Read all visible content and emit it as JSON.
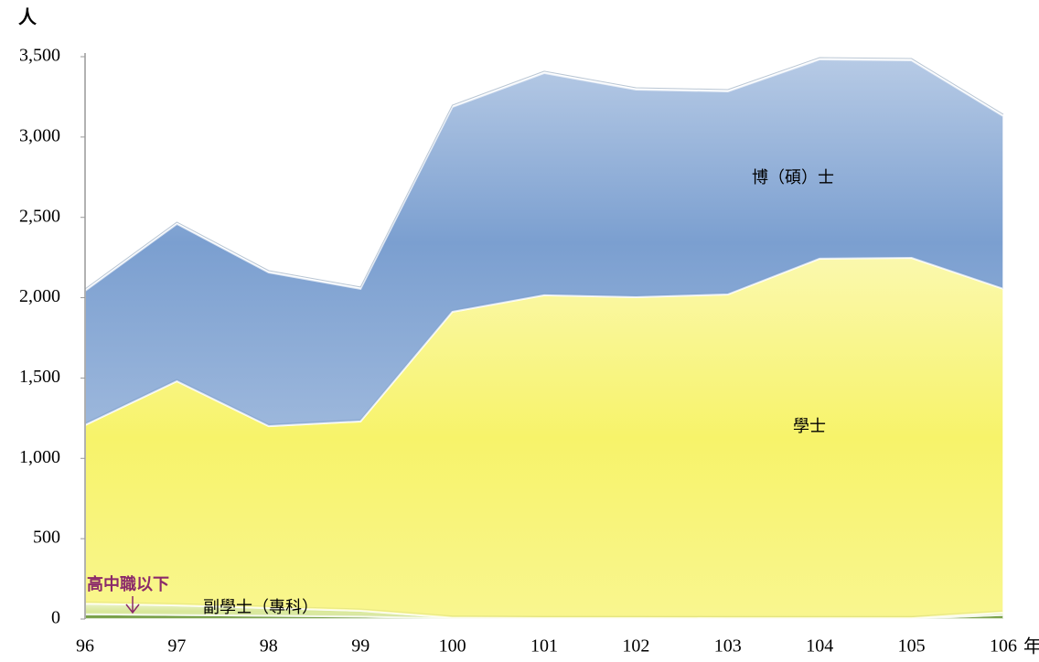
{
  "chart_data": {
    "type": "stacked_area",
    "y_label": "人",
    "x_label": "年",
    "categories": [
      "96",
      "97",
      "98",
      "99",
      "100",
      "101",
      "102",
      "103",
      "104",
      "105",
      "106"
    ],
    "series": [
      {
        "name": "高中職以下",
        "color": "#6f9a3c",
        "values": [
          30,
          25,
          20,
          15,
          3,
          2,
          2,
          2,
          2,
          2,
          25
        ]
      },
      {
        "name": "副學士（專科）",
        "color": "#d9e89a",
        "values": [
          65,
          60,
          48,
          36,
          5,
          4,
          4,
          3,
          3,
          3,
          15
        ]
      },
      {
        "name": "學士",
        "color": "#f7f36a",
        "values": [
          1112,
          1395,
          1132,
          1179,
          1904,
          2009,
          1997,
          2015,
          2238,
          2243,
          2015
        ]
      },
      {
        "name": "博（碩）士",
        "color": "#7b9fd0",
        "values": [
          836,
          979,
          957,
          825,
          1275,
          1383,
          1292,
          1264,
          1240,
          1229,
          1075
        ]
      }
    ],
    "ylim": [
      0,
      3500
    ],
    "yticks": [
      0,
      500,
      {
        "value": 1000,
        "label": "1,000"
      },
      {
        "value": 1500,
        "label": "1,500"
      },
      {
        "value": 2000,
        "label": "2,000"
      },
      {
        "value": 2500,
        "label": "2,500"
      },
      {
        "value": 3000,
        "label": "3,000"
      },
      {
        "value": 3500,
        "label": "3,500"
      }
    ],
    "grid": false
  }
}
